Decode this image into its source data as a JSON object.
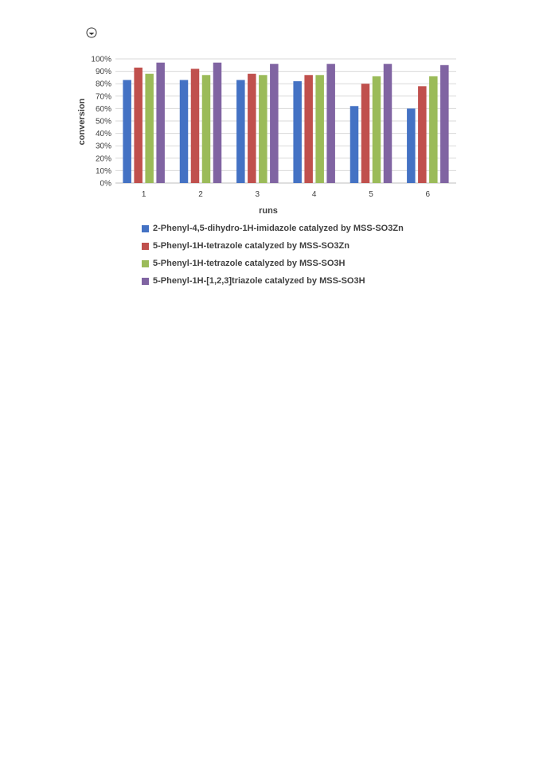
{
  "chart_data": {
    "type": "bar",
    "xlabel": "runs",
    "ylabel": "conversion",
    "categories": [
      "1",
      "2",
      "3",
      "4",
      "5",
      "6"
    ],
    "ylim": [
      0,
      100
    ],
    "y_ticks": [
      "0%",
      "10%",
      "20%",
      "30%",
      "40%",
      "50%",
      "60%",
      "70%",
      "80%",
      "90%",
      "100%"
    ],
    "grid": true,
    "legend_position": "bottom",
    "series": [
      {
        "name": "2-Phenyl-4,5-dihydro-1H-imidazole catalyzed by MSS-SO3Zn",
        "color": "#4472c4",
        "values": [
          83,
          83,
          83,
          82,
          62,
          60
        ]
      },
      {
        "name": "5-Phenyl-1H-tetrazole catalyzed by MSS-SO3Zn",
        "color": "#c0504d",
        "values": [
          93,
          92,
          88,
          87,
          80,
          78
        ]
      },
      {
        "name": "5-Phenyl-1H-tetrazole catalyzed by MSS-SO3H",
        "color": "#9bbb59",
        "values": [
          88,
          87,
          87,
          87,
          86,
          86
        ]
      },
      {
        "name": "5-Phenyl-1H-[1,2,3]triazole catalyzed by MSS-SO3H",
        "color": "#8064a2",
        "values": [
          97,
          97,
          96,
          96,
          96,
          95
        ]
      }
    ]
  },
  "corner_mark_icon": "circle-mark-icon"
}
